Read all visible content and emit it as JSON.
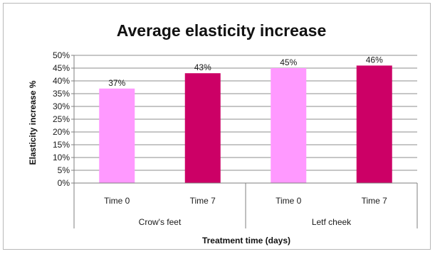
{
  "chart_data": {
    "type": "bar",
    "title": "Average elasticity increase",
    "xlabel": "Treatment time (days)",
    "ylabel": "Elasticity increase %",
    "ylim": [
      0,
      50
    ],
    "yticks": [
      "0%",
      "5%",
      "10%",
      "15%",
      "20%",
      "25%",
      "30%",
      "35%",
      "40%",
      "45%",
      "50%"
    ],
    "grid": true,
    "legend": "none",
    "groups": [
      {
        "label": "Crow's feet",
        "categories": [
          "Time 0",
          "Time 7"
        ]
      },
      {
        "label": "Letf cheek",
        "categories": [
          "Time 0",
          "Time 7"
        ]
      }
    ],
    "bars": [
      {
        "group": "Crow's feet",
        "category": "Time 0",
        "value": 37,
        "label": "37%",
        "color": "#ff99ff"
      },
      {
        "group": "Crow's feet",
        "category": "Time 7",
        "value": 43,
        "label": "43%",
        "color": "#cc0066"
      },
      {
        "group": "Letf cheek",
        "category": "Time 0",
        "value": 45,
        "label": "45%",
        "color": "#ff99ff"
      },
      {
        "group": "Letf cheek",
        "category": "Time 7",
        "value": 46,
        "label": "46%",
        "color": "#cc0066"
      }
    ]
  }
}
